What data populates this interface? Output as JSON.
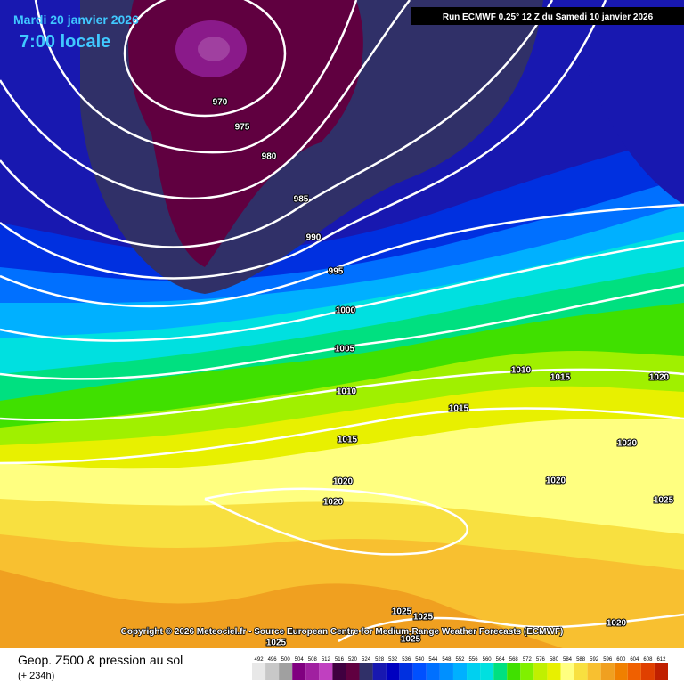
{
  "header": {
    "date": "Mardi 20 janvier 2026",
    "time": "7:00 locale",
    "run": "Run ECMWF 0.25° 12 Z du Samedi 10 janvier 2026"
  },
  "copyright": "Copyright © 2026 Meteociel.fr - Source European Centre for Medium-Range Weather Forecasts (ECMWF)",
  "isobar_labels": [
    970,
    975,
    980,
    985,
    990,
    995,
    1000,
    1005,
    1010,
    1010,
    1015,
    1015,
    1015,
    1020,
    1020,
    1020,
    1020,
    1020,
    1025,
    1025,
    1025,
    1025,
    1025,
    1020
  ],
  "footer": {
    "title": "Geop. Z500 & pression au sol",
    "lead": "(+ 234h)"
  },
  "scale": {
    "labels": [
      492,
      496,
      500,
      504,
      508,
      512,
      516,
      520,
      524,
      528,
      532,
      536,
      540,
      544,
      548,
      552,
      556,
      560,
      564,
      568,
      572,
      576,
      580,
      584,
      588,
      592,
      596,
      600,
      604,
      608,
      612
    ]
  }
}
